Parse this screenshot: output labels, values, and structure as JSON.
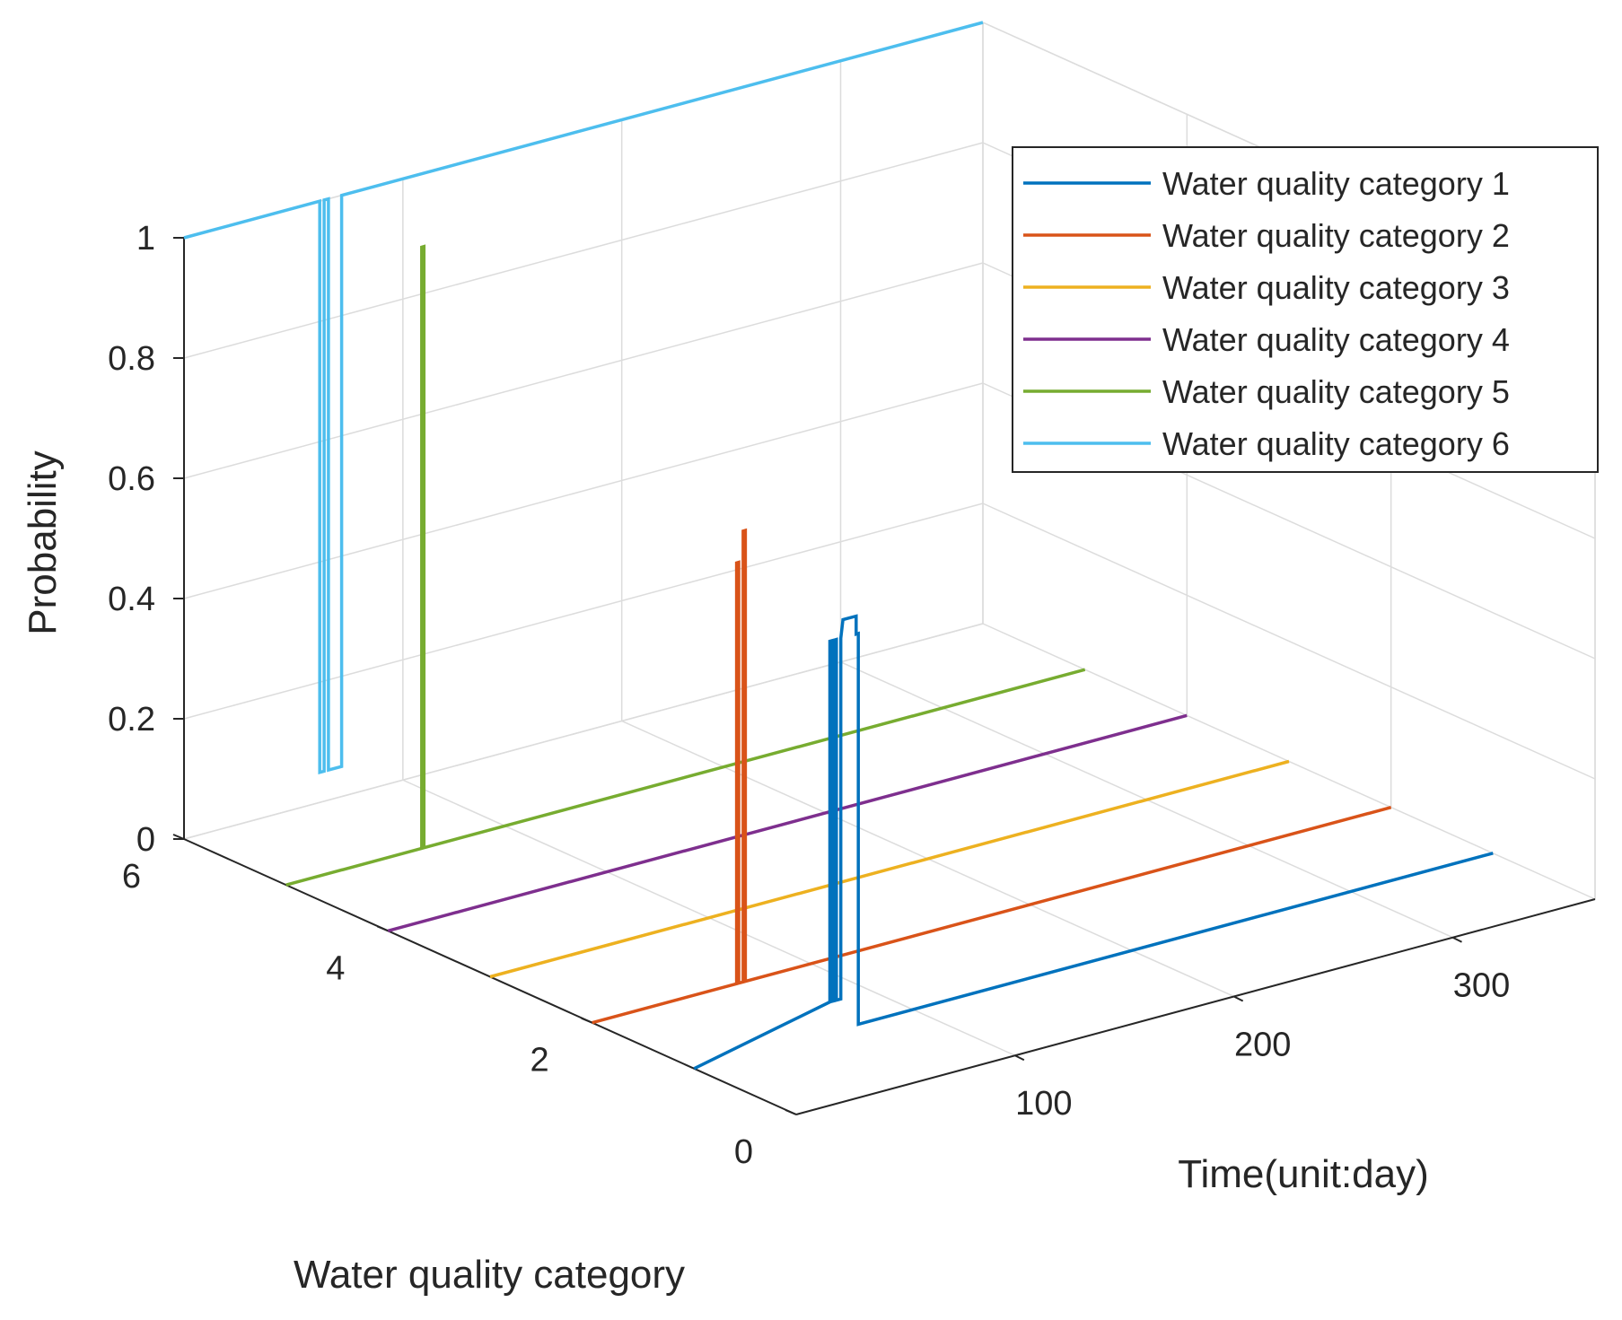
{
  "chart_data": {
    "type": "line",
    "projection": "3d",
    "xlabel": "Time(unit:day)",
    "ylabel": "Water quality category",
    "zlabel": "Probability",
    "xlim": [
      0,
      365
    ],
    "ylim": [
      0,
      6
    ],
    "zlim": [
      0,
      1
    ],
    "xticks": [
      100,
      200,
      300
    ],
    "yticks": [
      0,
      2,
      4,
      6
    ],
    "zticks": [
      0,
      0.2,
      0.4,
      0.6,
      0.8,
      1
    ],
    "xtick_labels": [
      "100",
      "200",
      "300"
    ],
    "ytick_labels": [
      "0",
      "2",
      "4",
      "6"
    ],
    "ztick_labels": [
      "0",
      "0.2",
      "0.4",
      "0.6",
      "0.8",
      "1"
    ],
    "grid": true,
    "legend_position": "top-right",
    "series": [
      {
        "name": "Water quality category 1",
        "category": 1,
        "color": "#0072BD",
        "points": [
          [
            0,
            0
          ],
          [
            62,
            0.05
          ],
          [
            62,
            0.65
          ],
          [
            63,
            0.65
          ],
          [
            63,
            0.05
          ],
          [
            64,
            0.05
          ],
          [
            64,
            0.65
          ],
          [
            65,
            0.65
          ],
          [
            65,
            0.05
          ],
          [
            66,
            0.05
          ],
          [
            66,
            0.05
          ],
          [
            67,
            0.05
          ],
          [
            67,
            0.65
          ],
          [
            68,
            0.68
          ],
          [
            70,
            0.68
          ],
          [
            70,
            0.68
          ],
          [
            74,
            0.68
          ],
          [
            74,
            0.65
          ],
          [
            75,
            0.65
          ],
          [
            75,
            0
          ],
          [
            365,
            0
          ]
        ]
      },
      {
        "name": "Water quality category 2",
        "category": 2,
        "color": "#D95319",
        "points": [
          [
            0,
            0
          ],
          [
            66,
            0
          ],
          [
            66,
            0.7
          ],
          [
            67,
            0.7
          ],
          [
            67,
            0
          ],
          [
            69,
            0
          ],
          [
            69,
            0.75
          ],
          [
            70,
            0.75
          ],
          [
            70,
            0
          ],
          [
            365,
            0
          ]
        ]
      },
      {
        "name": "Water quality category 3",
        "category": 3,
        "color": "#EDB120",
        "points": [
          [
            0,
            0
          ],
          [
            365,
            0
          ]
        ]
      },
      {
        "name": "Water quality category 4",
        "category": 4,
        "color": "#7E2F8E",
        "points": [
          [
            0,
            0
          ],
          [
            365,
            0
          ]
        ]
      },
      {
        "name": "Water quality category 5",
        "category": 5,
        "color": "#77AC30",
        "points": [
          [
            0,
            0
          ],
          [
            62,
            0
          ],
          [
            62,
            1
          ],
          [
            63,
            1
          ],
          [
            63,
            0
          ],
          [
            365,
            0
          ]
        ]
      },
      {
        "name": "Water quality category 6",
        "category": 6,
        "color": "#4DBEEE",
        "points": [
          [
            0,
            1
          ],
          [
            62,
            1
          ],
          [
            62,
            0.05
          ],
          [
            64,
            0.05
          ],
          [
            64,
            1
          ],
          [
            66,
            1
          ],
          [
            66,
            0.05
          ],
          [
            72,
            0.05
          ],
          [
            72,
            1
          ],
          [
            365,
            1
          ]
        ]
      }
    ]
  }
}
